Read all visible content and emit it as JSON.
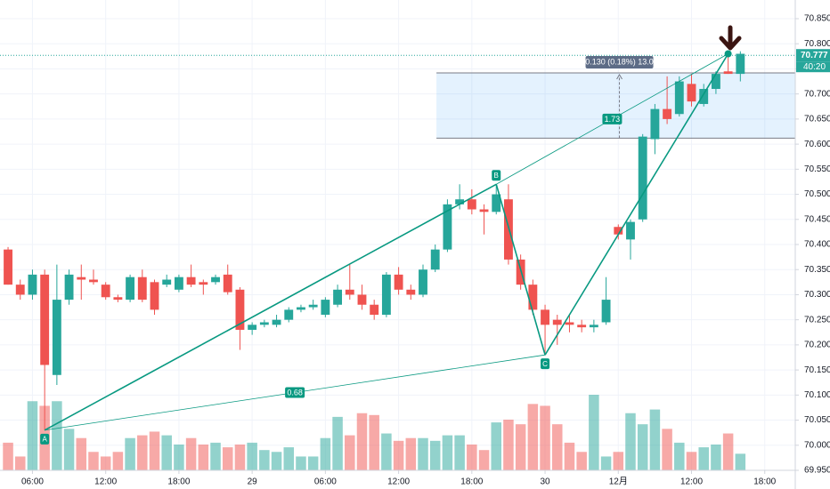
{
  "chart_data": {
    "type": "candlestick",
    "x": [
      0,
      1,
      2,
      3,
      4,
      5,
      6,
      7,
      8,
      9,
      10,
      11,
      12,
      13,
      14,
      15,
      16,
      17,
      18,
      19,
      20,
      21,
      22,
      23,
      24,
      25,
      26,
      27,
      28,
      29,
      30,
      31,
      32,
      33,
      34,
      35,
      36,
      37,
      38,
      39,
      40,
      41,
      42,
      43,
      44,
      45,
      46,
      47,
      48,
      49,
      50,
      51,
      52,
      53,
      54,
      55,
      56,
      57,
      58,
      59,
      60
    ],
    "open": [
      70.39,
      70.32,
      70.3,
      70.34,
      70.14,
      70.29,
      70.335,
      70.33,
      70.32,
      70.295,
      70.29,
      70.335,
      70.325,
      70.32,
      70.31,
      70.335,
      70.325,
      70.325,
      70.34,
      70.31,
      70.23,
      70.24,
      70.24,
      70.25,
      70.27,
      70.275,
      70.26,
      70.28,
      70.31,
      70.3,
      70.28,
      70.26,
      70.34,
      70.31,
      70.3,
      70.35,
      70.39,
      70.48,
      70.49,
      70.47,
      70.465,
      70.49,
      70.37,
      70.32,
      70.27,
      70.25,
      70.245,
      70.24,
      70.235,
      70.245,
      70.435,
      70.41,
      70.45,
      70.61,
      70.67,
      70.66,
      70.72,
      70.68,
      70.71,
      70.745,
      70.74
    ],
    "high": [
      70.395,
      70.33,
      70.35,
      70.35,
      70.36,
      70.35,
      70.36,
      70.35,
      70.325,
      70.3,
      70.34,
      70.35,
      70.33,
      70.34,
      70.34,
      70.36,
      70.33,
      70.34,
      70.36,
      70.315,
      70.245,
      70.25,
      70.26,
      70.275,
      70.28,
      70.29,
      70.295,
      70.32,
      70.36,
      70.32,
      70.29,
      70.345,
      70.355,
      70.32,
      70.36,
      70.4,
      70.49,
      70.52,
      70.51,
      70.48,
      70.52,
      70.52,
      70.38,
      70.33,
      70.28,
      70.26,
      70.26,
      70.25,
      70.25,
      70.335,
      70.44,
      70.45,
      70.62,
      70.68,
      70.735,
      70.735,
      70.74,
      70.72,
      70.745,
      70.775,
      70.785
    ],
    "low": [
      70.32,
      70.29,
      70.29,
      70.03,
      70.12,
      70.28,
      70.29,
      70.32,
      70.29,
      70.285,
      70.285,
      70.285,
      70.26,
      70.315,
      70.305,
      70.315,
      70.3,
      70.32,
      70.3,
      70.19,
      70.22,
      70.235,
      70.235,
      70.245,
      70.265,
      70.27,
      70.255,
      70.275,
      70.29,
      70.27,
      70.25,
      70.255,
      70.3,
      70.29,
      70.295,
      70.345,
      70.385,
      70.47,
      70.46,
      70.42,
      70.46,
      70.36,
      70.31,
      70.26,
      70.18,
      70.2,
      70.225,
      70.225,
      70.225,
      70.24,
      70.41,
      70.37,
      70.445,
      70.58,
      70.64,
      70.655,
      70.675,
      70.675,
      70.7,
      70.74,
      70.725
    ],
    "close": [
      70.32,
      70.3,
      70.34,
      70.16,
      70.29,
      70.34,
      70.33,
      70.325,
      70.295,
      70.29,
      70.335,
      70.29,
      70.27,
      70.33,
      70.335,
      70.32,
      70.32,
      70.335,
      70.305,
      70.23,
      70.24,
      70.245,
      70.25,
      70.27,
      70.275,
      70.28,
      70.29,
      70.31,
      70.3,
      70.28,
      70.26,
      70.34,
      70.31,
      70.3,
      70.35,
      70.39,
      70.48,
      70.49,
      70.47,
      70.465,
      70.5,
      70.37,
      70.32,
      70.27,
      70.24,
      70.24,
      70.24,
      70.235,
      70.24,
      70.29,
      70.42,
      70.445,
      70.615,
      70.67,
      70.65,
      70.725,
      70.685,
      70.71,
      70.74,
      70.74,
      70.78
    ],
    "volume": [
      30,
      15,
      75,
      70,
      75,
      45,
      35,
      20,
      15,
      20,
      35,
      38,
      42,
      38,
      28,
      35,
      28,
      30,
      25,
      28,
      30,
      22,
      20,
      25,
      15,
      15,
      35,
      58,
      38,
      62,
      60,
      40,
      32,
      35,
      35,
      32,
      38,
      38,
      28,
      22,
      52,
      55,
      50,
      72,
      70,
      50,
      30,
      20,
      82,
      15,
      20,
      62,
      50,
      66,
      45,
      30,
      20,
      25,
      28,
      40,
      18
    ],
    "up_color": "#26a69a",
    "down_color": "#ef5350",
    "xlim": [
      -0.66,
      64.5
    ],
    "xticks": [
      {
        "value": 2,
        "label": "06:00"
      },
      {
        "value": 8,
        "label": "12:00"
      },
      {
        "value": 14,
        "label": "18:00"
      },
      {
        "value": 20,
        "label": "29"
      },
      {
        "value": 26,
        "label": "06:00"
      },
      {
        "value": 32,
        "label": "12:00"
      },
      {
        "value": 38,
        "label": "18:00"
      },
      {
        "value": 44,
        "label": "30"
      },
      {
        "value": 50,
        "label": "12月"
      },
      {
        "value": 56,
        "label": "12:00"
      },
      {
        "value": 62,
        "label": "18:00"
      }
    ],
    "ylim": [
      69.95,
      70.85
    ],
    "yticks": [
      {
        "value": 69.95,
        "label": "69.950"
      },
      {
        "value": 70.0,
        "label": "70.000"
      },
      {
        "value": 70.05,
        "label": "70.050"
      },
      {
        "value": 70.1,
        "label": "70.100"
      },
      {
        "value": 70.15,
        "label": "70.150"
      },
      {
        "value": 70.2,
        "label": "70.200"
      },
      {
        "value": 70.25,
        "label": "70.250"
      },
      {
        "value": 70.3,
        "label": "70.300"
      },
      {
        "value": 70.35,
        "label": "70.350"
      },
      {
        "value": 70.4,
        "label": "70.400"
      },
      {
        "value": 70.45,
        "label": "70.450"
      },
      {
        "value": 70.5,
        "label": "70.500"
      },
      {
        "value": 70.55,
        "label": "70.550"
      },
      {
        "value": 70.6,
        "label": "70.600"
      },
      {
        "value": 70.65,
        "label": "70.650"
      },
      {
        "value": 70.7,
        "label": "70.700"
      },
      {
        "value": 70.75,
        "label": "70.750"
      },
      {
        "value": 70.8,
        "label": "70.800"
      },
      {
        "value": 70.85,
        "label": "70.850"
      }
    ],
    "grid": true,
    "last_price": 70.777,
    "countdown": "40:20",
    "pattern": {
      "color": "#089981",
      "points": [
        {
          "label": "A",
          "x": 3,
          "y": 70.03
        },
        {
          "label": "B",
          "x": 40,
          "y": 70.52
        },
        {
          "label": "C",
          "x": 44,
          "y": 70.18
        },
        {
          "x": 59,
          "y": 70.78
        }
      ],
      "ratios": [
        0.68,
        1.73
      ]
    },
    "measure": {
      "x_start": 35.1,
      "range": [
        70.612,
        70.742
      ],
      "label": "0.130 (0.18%) 13.0"
    }
  }
}
